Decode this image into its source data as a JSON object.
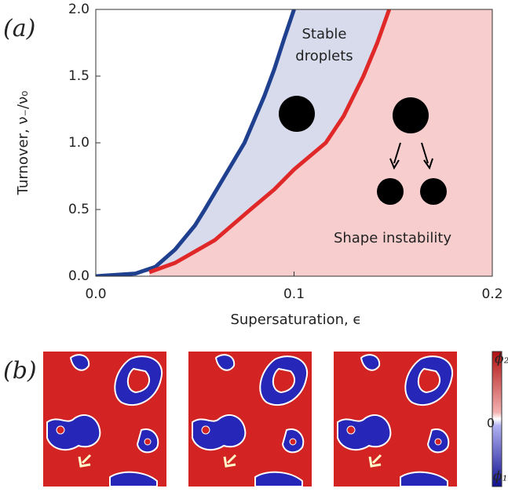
{
  "chart_data": {
    "type": "line",
    "panel_label": "(a)",
    "xlabel": "Supersaturation, ϵ",
    "ylabel": "Turnover, ν₋/ν₀",
    "xlim": [
      0,
      0.2
    ],
    "ylim": [
      0,
      2
    ],
    "xticks": [
      {
        "value": 0,
        "label": "0.0"
      },
      {
        "value": 0.1,
        "label": "0.1"
      },
      {
        "value": 0.2,
        "label": "0.2"
      }
    ],
    "yticks": [
      {
        "value": 0,
        "label": "0.0"
      },
      {
        "value": 0.5,
        "label": "0.5"
      },
      {
        "value": 1,
        "label": "1.0"
      },
      {
        "value": 1.5,
        "label": "1.5"
      },
      {
        "value": 2,
        "label": "2.0"
      }
    ],
    "series": [
      {
        "color": "#1f3f8f",
        "fill": "#d8dbec",
        "x": [
          0,
          0.02,
          0.03,
          0.04,
          0.05,
          0.055,
          0.065,
          0.075,
          0.085,
          0.09,
          0.095,
          0.1
        ],
        "values": [
          0,
          0.02,
          0.07,
          0.2,
          0.38,
          0.5,
          0.75,
          1.0,
          1.35,
          1.55,
          1.78,
          2.0
        ]
      },
      {
        "color": "#e02828",
        "fill": "#f7cdcd",
        "x": [
          0.027,
          0.04,
          0.06,
          0.078,
          0.09,
          0.1,
          0.116,
          0.125,
          0.135,
          0.142,
          0.148
        ],
        "values": [
          0.03,
          0.1,
          0.27,
          0.5,
          0.65,
          0.8,
          1.0,
          1.2,
          1.5,
          1.75,
          2.0
        ]
      }
    ],
    "annotations": [
      "Stable",
      "droplets",
      "Shape instability"
    ]
  },
  "panel_b": {
    "label": "(b)",
    "colorbar": {
      "top": "ϕ₂",
      "middle": "0",
      "bottom": "ϕ₁"
    }
  }
}
